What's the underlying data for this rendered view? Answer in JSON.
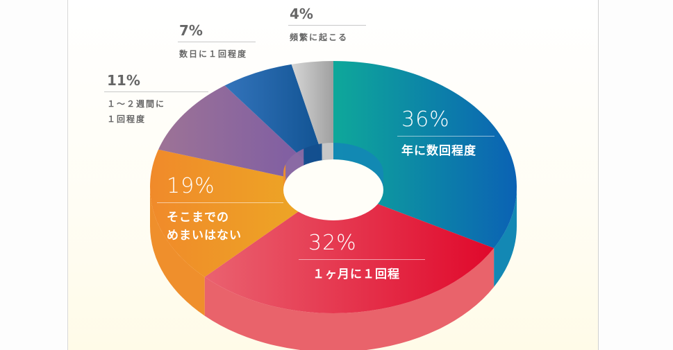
{
  "chart_data": {
    "type": "pie",
    "variant": "3d-donut",
    "title": "",
    "start_angle_deg": 0,
    "direction": "clockwise",
    "categories": [
      "年に数回程度",
      "1ヶ月に1回程",
      "そこまでのめまいはない",
      "1〜2週間に1回程度",
      "数日に1回程度",
      "頻繁に起こる"
    ],
    "values": [
      36,
      32,
      19,
      11,
      7,
      4
    ],
    "unit": "%",
    "slices": [
      {
        "pct_label": "36%",
        "lines": [
          "年に数回程度"
        ],
        "value": 36,
        "color_from": "#0ea89a",
        "color_to": "#0b62b4",
        "side": "#1388b4",
        "label_pos": "inside"
      },
      {
        "pct_label": "32%",
        "lines": [
          "１ヶ月に１回程"
        ],
        "value": 32,
        "color_from": "#ea6270",
        "color_to": "#e0082b",
        "side": "#e9636b",
        "label_pos": "inside"
      },
      {
        "pct_label": "19%",
        "lines": [
          "そこまでの",
          "めまいはない"
        ],
        "value": 19,
        "color_from": "#f08a2a",
        "color_to": "#ecab24",
        "side": "#ef8f2c",
        "label_pos": "inside"
      },
      {
        "pct_label": "11%",
        "lines": [
          "１～２週間に",
          "１回程度"
        ],
        "value": 11,
        "color_from": "#9d7396",
        "color_to": "#7859a6",
        "side": "#8a6aa4",
        "label_pos": "outside"
      },
      {
        "pct_label": "7%",
        "lines": [
          "数日に１回程度"
        ],
        "value": 7,
        "color_from": "#3374bb",
        "color_to": "#0d4f8e",
        "side": "#134f8e",
        "label_pos": "outside"
      },
      {
        "pct_label": "4%",
        "lines": [
          "頻繁に起こる"
        ],
        "value": 4,
        "color_from": "#d6d6d6",
        "color_to": "#a0a0a0",
        "side": "#c8c8c8",
        "label_pos": "outside"
      }
    ],
    "legend": "none",
    "grid": false
  },
  "labels": {
    "s0": {
      "pct": "36%",
      "line1": "年に数回程度"
    },
    "s1": {
      "pct": "32%",
      "line1": "１ヶ月に１回程"
    },
    "s2": {
      "pct": "19%",
      "line1": "そこまでの",
      "line2": "めまいはない"
    },
    "s3": {
      "pct": "11%",
      "line1": "１～２週間に",
      "line2": "１回程度"
    },
    "s4": {
      "pct": "7%",
      "line1": "数日に１回程度"
    },
    "s5": {
      "pct": "4%",
      "line1": "頻繁に起こる"
    }
  }
}
